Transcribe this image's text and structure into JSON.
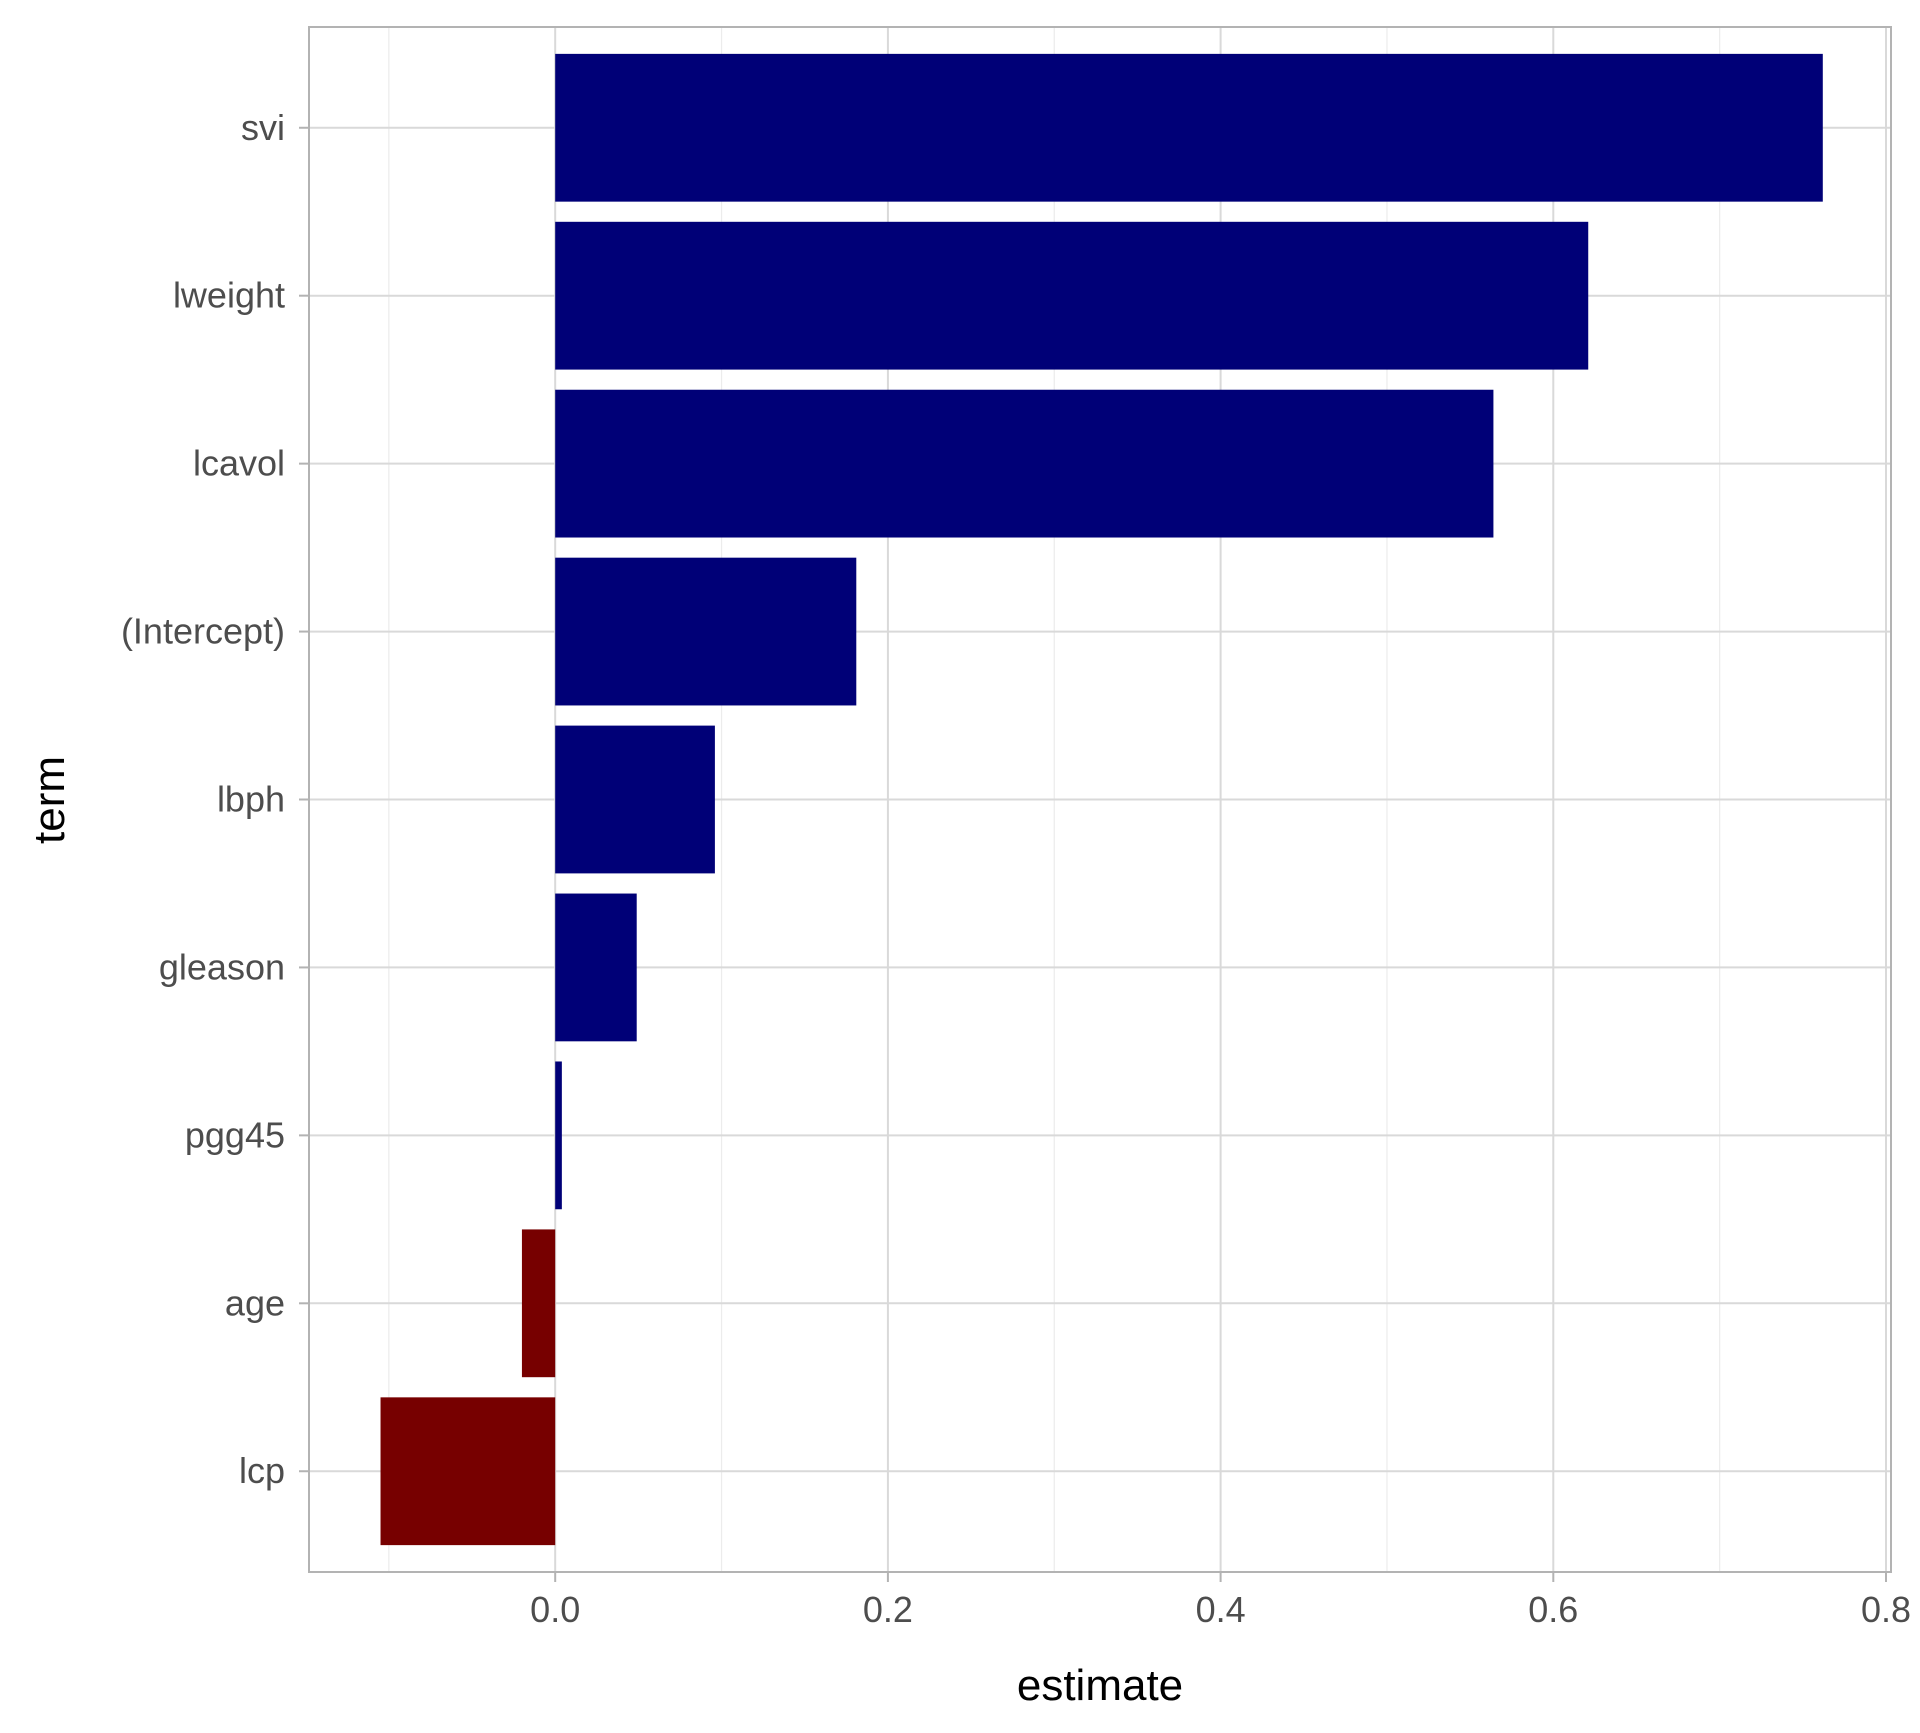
{
  "chart_data": {
    "type": "bar",
    "orientation": "horizontal",
    "title": "",
    "xlabel": "estimate",
    "ylabel": "term",
    "xlim": [
      -0.148,
      0.803
    ],
    "x_ticks": [
      0.0,
      0.2,
      0.4,
      0.6,
      0.8
    ],
    "x_tick_labels": [
      "0.0",
      "0.2",
      "0.4",
      "0.6",
      "0.8"
    ],
    "grid": true,
    "legend": "none",
    "colors": {
      "positive": "#000077",
      "negative": "#770000"
    },
    "categories": [
      "svi",
      "lweight",
      "lcavol",
      "(Intercept)",
      "lbph",
      "gleason",
      "pgg45",
      "age",
      "lcp"
    ],
    "values": [
      0.762,
      0.621,
      0.564,
      0.181,
      0.096,
      0.049,
      0.004,
      -0.02,
      -0.105
    ]
  }
}
